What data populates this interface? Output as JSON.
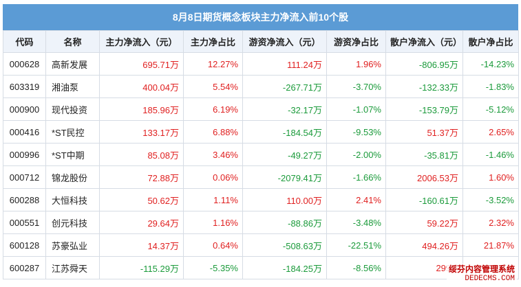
{
  "title": "8月8日期货概念板块主力净流入前10个股",
  "columns": [
    "代码",
    "名称",
    "主力净流入（元）",
    "主力净占比",
    "游资净流入（元）",
    "游资净占比",
    "散户净流入（元）",
    "散户净占比"
  ],
  "rows": [
    {
      "code": "000628",
      "name": "高新发展",
      "main_in": "695.71万",
      "main_pct": "12.27%",
      "hot_in": "111.24万",
      "hot_pct": "1.96%",
      "retail_in": "-806.95万",
      "retail_pct": "-14.23%"
    },
    {
      "code": "603319",
      "name": "湘油泵",
      "main_in": "400.04万",
      "main_pct": "5.54%",
      "hot_in": "-267.71万",
      "hot_pct": "-3.70%",
      "retail_in": "-132.33万",
      "retail_pct": "-1.83%"
    },
    {
      "code": "000900",
      "name": "现代投资",
      "main_in": "185.96万",
      "main_pct": "6.19%",
      "hot_in": "-32.17万",
      "hot_pct": "-1.07%",
      "retail_in": "-153.79万",
      "retail_pct": "-5.12%"
    },
    {
      "code": "000416",
      "name": "*ST民控",
      "main_in": "133.17万",
      "main_pct": "6.88%",
      "hot_in": "-184.54万",
      "hot_pct": "-9.53%",
      "retail_in": "51.37万",
      "retail_pct": "2.65%"
    },
    {
      "code": "000996",
      "name": "*ST中期",
      "main_in": "85.08万",
      "main_pct": "3.46%",
      "hot_in": "-49.27万",
      "hot_pct": "-2.00%",
      "retail_in": "-35.81万",
      "retail_pct": "-1.46%"
    },
    {
      "code": "000712",
      "name": "锦龙股份",
      "main_in": "72.88万",
      "main_pct": "0.06%",
      "hot_in": "-2079.41万",
      "hot_pct": "-1.66%",
      "retail_in": "2006.53万",
      "retail_pct": "1.60%"
    },
    {
      "code": "600288",
      "name": "大恒科技",
      "main_in": "50.62万",
      "main_pct": "1.11%",
      "hot_in": "110.00万",
      "hot_pct": "2.41%",
      "retail_in": "-160.61万",
      "retail_pct": "-3.52%"
    },
    {
      "code": "000551",
      "name": "创元科技",
      "main_in": "29.64万",
      "main_pct": "1.16%",
      "hot_in": "-88.86万",
      "hot_pct": "-3.48%",
      "retail_in": "59.22万",
      "retail_pct": "2.32%"
    },
    {
      "code": "600128",
      "name": "苏豪弘业",
      "main_in": "14.37万",
      "main_pct": "0.64%",
      "hot_in": "-508.63万",
      "hot_pct": "-22.51%",
      "retail_in": "494.26万",
      "retail_pct": "21.87%"
    },
    {
      "code": "600287",
      "name": "江苏舜天",
      "main_in": "-115.29万",
      "main_pct": "-5.35%",
      "hot_in": "-184.25万",
      "hot_pct": "-8.56%",
      "retail_in": "299.5",
      "retail_pct": ""
    }
  ],
  "watermark": {
    "line1": "绥芬内容管理系统",
    "line2": "DEDECMS.COM"
  },
  "colors": {
    "header_bg": "#5b9bd5",
    "positive": "#e02020",
    "negative": "#1a9a3a",
    "column_header_bg": "#eef3fa"
  }
}
